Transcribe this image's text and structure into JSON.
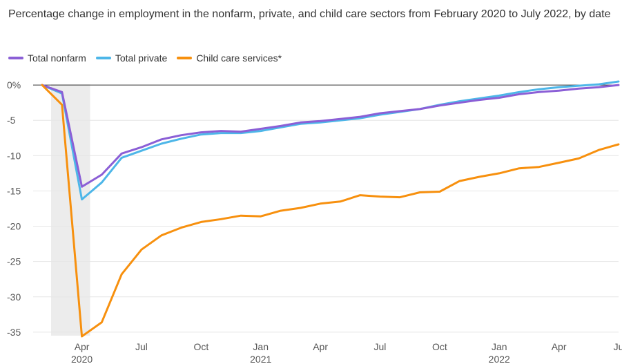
{
  "chart_data": {
    "type": "line",
    "title": "Percentage change in employment in the nonfarm, private, and child care sectors from February 2020 to July 2022, by date",
    "xlabel": "",
    "ylabel": "",
    "ylim": [
      -35.5,
      0.5
    ],
    "y_ticks": [
      {
        "value": 0,
        "label": "0%"
      },
      {
        "value": -5,
        "label": "-5"
      },
      {
        "value": -10,
        "label": "-10"
      },
      {
        "value": -15,
        "label": "-15"
      },
      {
        "value": -20,
        "label": "-20"
      },
      {
        "value": -25,
        "label": "-25"
      },
      {
        "value": -30,
        "label": "-30"
      },
      {
        "value": -35,
        "label": "-35"
      }
    ],
    "x_ticks": [
      {
        "date": "2020-04",
        "label": "Apr",
        "year": "2020"
      },
      {
        "date": "2020-07",
        "label": "Jul",
        "year": ""
      },
      {
        "date": "2020-10",
        "label": "Oct",
        "year": ""
      },
      {
        "date": "2021-01",
        "label": "Jan",
        "year": "2021"
      },
      {
        "date": "2021-04",
        "label": "Apr",
        "year": ""
      },
      {
        "date": "2021-07",
        "label": "Jul",
        "year": ""
      },
      {
        "date": "2021-10",
        "label": "Oct",
        "year": ""
      },
      {
        "date": "2022-01",
        "label": "Jan",
        "year": "2022"
      },
      {
        "date": "2022-04",
        "label": "Apr",
        "year": ""
      },
      {
        "date": "2022-07",
        "label": "Ju",
        "year": ""
      }
    ],
    "x": [
      "2020-02",
      "2020-03",
      "2020-04",
      "2020-05",
      "2020-06",
      "2020-07",
      "2020-08",
      "2020-09",
      "2020-10",
      "2020-11",
      "2020-12",
      "2021-01",
      "2021-02",
      "2021-03",
      "2021-04",
      "2021-05",
      "2021-06",
      "2021-07",
      "2021-08",
      "2021-09",
      "2021-10",
      "2021-11",
      "2021-12",
      "2022-01",
      "2022-02",
      "2022-03",
      "2022-04",
      "2022-05",
      "2022-06",
      "2022-07"
    ],
    "shaded_period": [
      "2020-02",
      "2020-04"
    ],
    "grid": true,
    "legend_position": "top-left",
    "series": [
      {
        "name": "Total nonfarm",
        "color": "#8b5fd6",
        "values": [
          0,
          -1.0,
          -14.4,
          -12.7,
          -9.7,
          -8.8,
          -7.7,
          -7.1,
          -6.7,
          -6.5,
          -6.6,
          -6.2,
          -5.8,
          -5.3,
          -5.1,
          -4.8,
          -4.5,
          -4.0,
          -3.7,
          -3.4,
          -2.9,
          -2.5,
          -2.1,
          -1.8,
          -1.3,
          -1.0,
          -0.8,
          -0.5,
          -0.3,
          0.0
        ]
      },
      {
        "name": "Total private",
        "color": "#4db6e8",
        "values": [
          0,
          -1.2,
          -16.2,
          -13.8,
          -10.3,
          -9.3,
          -8.3,
          -7.6,
          -7.0,
          -6.8,
          -6.8,
          -6.5,
          -6.0,
          -5.5,
          -5.3,
          -5.0,
          -4.7,
          -4.2,
          -3.8,
          -3.4,
          -2.8,
          -2.3,
          -1.9,
          -1.5,
          -1.0,
          -0.6,
          -0.3,
          -0.1,
          0.1,
          0.5
        ]
      },
      {
        "name": "Child care services*",
        "color": "#f7900e",
        "values": [
          0,
          -2.8,
          -35.6,
          -33.6,
          -26.8,
          -23.3,
          -21.3,
          -20.2,
          -19.4,
          -19.0,
          -18.5,
          -18.6,
          -17.8,
          -17.4,
          -16.8,
          -16.5,
          -15.6,
          -15.8,
          -15.9,
          -15.2,
          -15.1,
          -13.6,
          -13.0,
          -12.5,
          -11.8,
          -11.6,
          -11.0,
          -10.4,
          -9.2,
          -8.4
        ]
      }
    ]
  }
}
